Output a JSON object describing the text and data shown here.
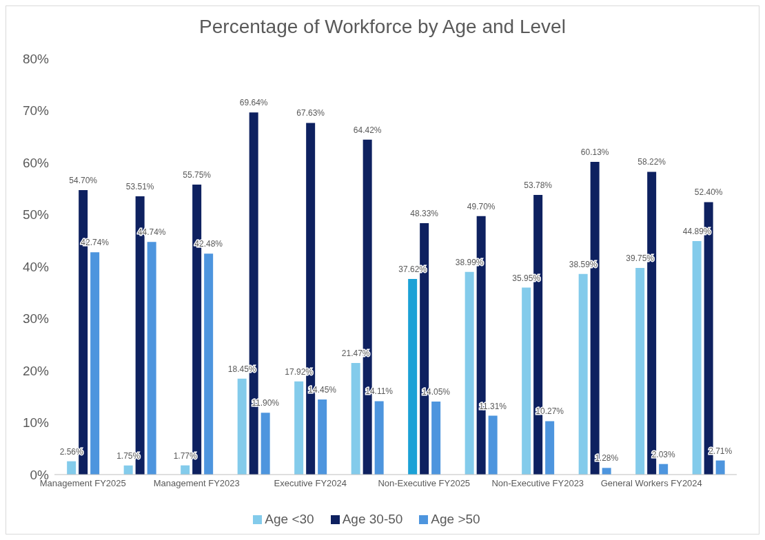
{
  "chart_data": {
    "type": "bar",
    "title": "Percentage of Workforce by Age and Level",
    "categories": [
      "Management FY2025",
      null,
      "Management FY2023",
      null,
      "Executive FY2024",
      null,
      "Non-Executive FY2025",
      null,
      "Non-Executive FY2023",
      null,
      "General Workers FY2024",
      null
    ],
    "series": [
      {
        "name": "Age <30",
        "color": "#83cbeb",
        "colors": [
          "#83cbeb",
          "#83cbeb",
          "#83cbeb",
          "#83cbeb",
          "#83cbeb",
          "#83cbeb",
          "#1ba1d6",
          "#83cbeb",
          "#83cbeb",
          "#83cbeb",
          "#83cbeb",
          "#83cbeb"
        ],
        "values": [
          2.56,
          1.75,
          1.77,
          18.45,
          17.92,
          21.47,
          37.62,
          38.99,
          35.95,
          38.59,
          39.75,
          44.89
        ],
        "value_labels": [
          "2.56%",
          "1.75%",
          "1.77%",
          "18.45%",
          "17.92%",
          "21.47%",
          "37.62%",
          "38.99%",
          "35.95%",
          "38.59%",
          "39.75%",
          "44.89%"
        ]
      },
      {
        "name": "Age 30-50",
        "color": "#0e2160",
        "values": [
          54.7,
          53.51,
          55.75,
          69.64,
          67.63,
          64.42,
          48.33,
          49.7,
          53.78,
          60.13,
          58.22,
          52.4
        ],
        "value_labels": [
          "54.70%",
          "53.51%",
          "55.75%",
          "69.64%",
          "67.63%",
          "64.42%",
          "48.33%",
          "49.70%",
          "53.78%",
          "60.13%",
          "58.22%",
          "52.40%"
        ]
      },
      {
        "name": "Age >50",
        "color": "#4d95de",
        "values": [
          42.74,
          44.74,
          42.48,
          11.9,
          14.45,
          14.11,
          14.05,
          11.31,
          10.27,
          1.28,
          2.03,
          2.71
        ],
        "value_labels": [
          "42.74%",
          "44.74%",
          "42.48%",
          "11.90%",
          "14.45%",
          "14.11%",
          "14.05%",
          "11.31%",
          "10.27%",
          "1.28%",
          "2.03%",
          "2.71%"
        ]
      }
    ],
    "ylim": [
      0,
      80
    ],
    "yticks": [
      {
        "value": 0,
        "label": "0%"
      },
      {
        "value": 10,
        "label": "10%"
      },
      {
        "value": 20,
        "label": "20%"
      },
      {
        "value": 30,
        "label": "30%"
      },
      {
        "value": 40,
        "label": "40%"
      },
      {
        "value": 50,
        "label": "50%"
      },
      {
        "value": 60,
        "label": "60%"
      },
      {
        "value": 70,
        "label": "70%"
      },
      {
        "value": 80,
        "label": "80%"
      }
    ],
    "legend": "bottom"
  }
}
